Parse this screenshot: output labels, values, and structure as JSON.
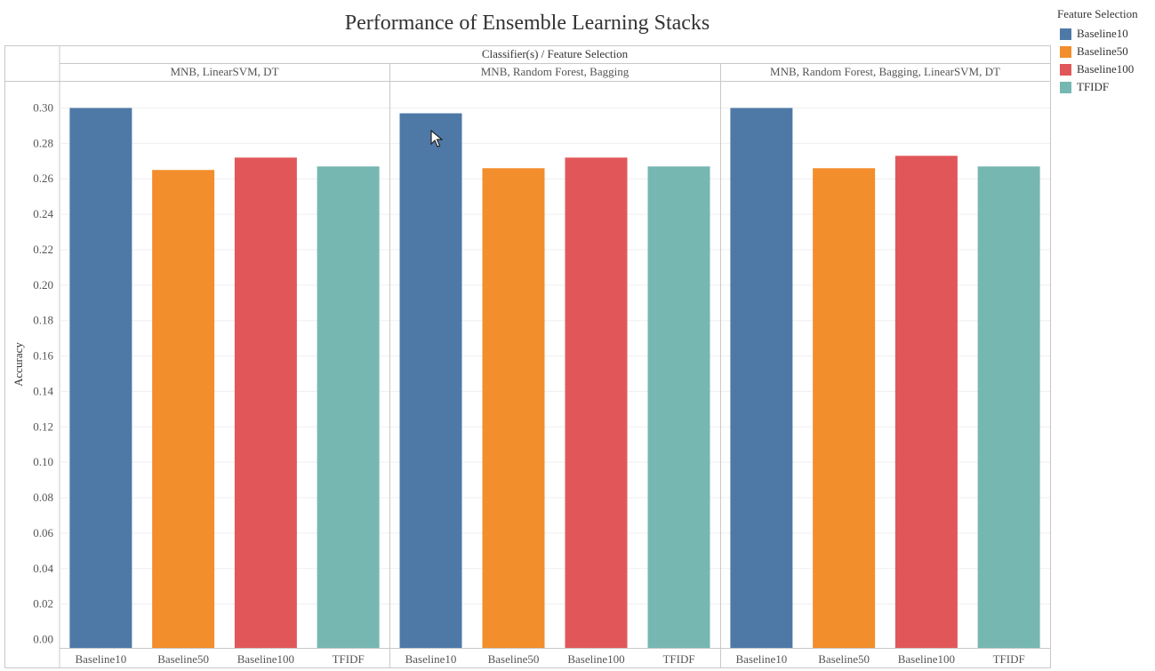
{
  "chart_data": {
    "type": "bar",
    "title": "Performance of Ensemble Learning Stacks",
    "column_header": "Classifier(s)  /  Feature Selection",
    "ylabel": "Accuracy",
    "ylim": [
      0,
      0.3
    ],
    "yticks": [
      "0.00",
      "0.02",
      "0.04",
      "0.06",
      "0.08",
      "0.10",
      "0.12",
      "0.14",
      "0.16",
      "0.18",
      "0.20",
      "0.22",
      "0.24",
      "0.26",
      "0.28",
      "0.30"
    ],
    "categories": [
      "Baseline10",
      "Baseline50",
      "Baseline100",
      "TFIDF"
    ],
    "colors": [
      "#4e79a7",
      "#f28e2b",
      "#e15759",
      "#76b7b2"
    ],
    "panels": [
      {
        "name": "MNB, LinearSVM, DT",
        "values": [
          0.3,
          0.265,
          0.272,
          0.267
        ]
      },
      {
        "name": "MNB, Random Forest, Bagging",
        "values": [
          0.297,
          0.266,
          0.272,
          0.267
        ]
      },
      {
        "name": "MNB, Random Forest, Bagging, LinearSVM, DT",
        "values": [
          0.3,
          0.266,
          0.273,
          0.267
        ]
      }
    ],
    "legend_title": "Feature Selection",
    "legend_placement": "top-right",
    "grid": true
  }
}
